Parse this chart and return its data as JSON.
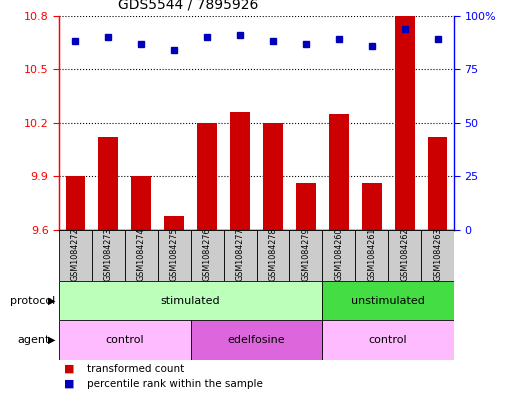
{
  "title": "GDS5544 / 7895926",
  "samples": [
    "GSM1084272",
    "GSM1084273",
    "GSM1084274",
    "GSM1084275",
    "GSM1084276",
    "GSM1084277",
    "GSM1084278",
    "GSM1084279",
    "GSM1084260",
    "GSM1084261",
    "GSM1084262",
    "GSM1084263"
  ],
  "transformed_count": [
    9.9,
    10.12,
    9.9,
    9.68,
    10.2,
    10.26,
    10.2,
    9.86,
    10.25,
    9.86,
    10.8,
    10.12
  ],
  "percentile_rank": [
    88,
    90,
    87,
    84,
    90,
    91,
    88,
    87,
    89,
    86,
    94,
    89
  ],
  "ylim_left": [
    9.6,
    10.8
  ],
  "ylim_right": [
    0,
    100
  ],
  "yticks_left": [
    9.6,
    9.9,
    10.2,
    10.5,
    10.8
  ],
  "yticks_right": [
    0,
    25,
    50,
    75,
    100
  ],
  "bar_color": "#cc0000",
  "dot_color": "#0000bb",
  "protocol_groups": [
    {
      "label": "stimulated",
      "start": 0,
      "end": 8,
      "color": "#bbffbb"
    },
    {
      "label": "unstimulated",
      "start": 8,
      "end": 12,
      "color": "#44dd44"
    }
  ],
  "agent_groups": [
    {
      "label": "control",
      "start": 0,
      "end": 4,
      "color": "#ffbbff"
    },
    {
      "label": "edelfosine",
      "start": 4,
      "end": 8,
      "color": "#dd66dd"
    },
    {
      "label": "control",
      "start": 8,
      "end": 12,
      "color": "#ffbbff"
    }
  ],
  "legend_items": [
    {
      "label": "transformed count",
      "color": "#cc0000"
    },
    {
      "label": "percentile rank within the sample",
      "color": "#0000bb"
    }
  ],
  "protocol_label": "protocol",
  "agent_label": "agent",
  "gray_box_color": "#cccccc"
}
